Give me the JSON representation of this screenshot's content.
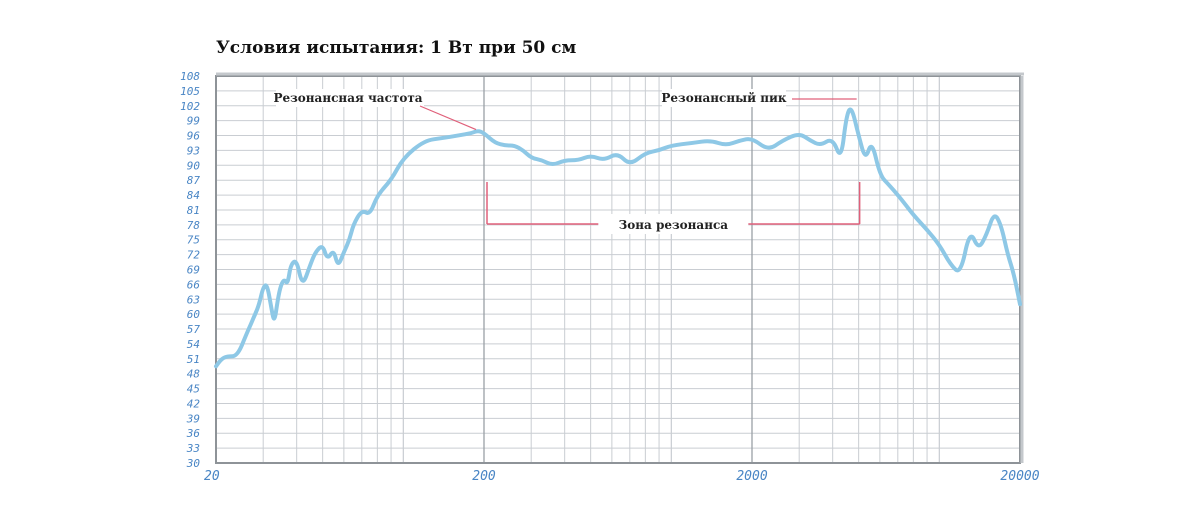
{
  "title": "Условия испытания: 1 Вт при 50 см",
  "chart_data": {
    "type": "line",
    "title": "Условия испытания: 1 Вт при 50 см",
    "x_scale": "log",
    "xlim": [
      20,
      20000
    ],
    "ylim": [
      30,
      108
    ],
    "x_ticks": [
      "20",
      "200",
      "2000",
      "20000"
    ],
    "y_ticks": [
      "108",
      "105",
      "102",
      "99",
      "96",
      "93",
      "90",
      "87",
      "84",
      "81",
      "78",
      "75",
      "72",
      "69",
      "66",
      "63",
      "60",
      "57",
      "54",
      "51",
      "48",
      "45",
      "42",
      "39",
      "36",
      "33",
      "30"
    ],
    "grid": true,
    "line_color": "#8ec8e6",
    "series": [
      {
        "x": [
          20,
          21,
          22,
          24,
          26,
          27,
          28,
          29,
          30,
          31,
          32,
          33,
          34,
          35,
          36,
          37,
          38,
          40,
          42,
          45,
          47,
          50,
          52,
          55,
          57,
          60,
          63,
          65,
          70,
          75,
          80,
          90,
          100,
          120,
          140,
          160,
          180,
          190,
          200,
          220,
          240,
          260,
          280,
          300,
          330,
          360,
          400,
          450,
          500,
          560,
          630,
          700,
          800,
          900,
          1000,
          1200,
          1400,
          1600,
          1800,
          2000,
          2300,
          2600,
          3000,
          3300,
          3600,
          4000,
          4300,
          4500,
          4700,
          5000,
          5300,
          5600,
          6000,
          6500,
          7000,
          7500,
          8000,
          9000,
          10000,
          11000,
          12000,
          13000,
          14000,
          15000,
          16000,
          17000,
          18000,
          19000,
          20000
        ],
        "y": [
          49.5,
          51,
          51.5,
          51.5,
          56,
          58,
          60,
          62,
          65.5,
          66,
          62,
          58,
          63,
          66,
          67,
          66,
          70,
          71,
          65.5,
          70,
          72.5,
          74,
          71,
          73,
          69.5,
          72.5,
          75,
          78,
          81,
          80,
          84,
          87,
          91.5,
          95,
          95.5,
          96,
          96.5,
          97,
          96.5,
          94.5,
          94,
          94,
          93,
          91.5,
          91,
          90,
          91,
          91,
          92,
          91,
          92.5,
          90,
          92.5,
          93,
          94,
          94.5,
          95,
          94,
          95,
          95.5,
          93,
          95,
          96.5,
          95,
          94,
          95.5,
          91,
          100,
          102,
          96,
          91,
          95,
          88,
          86,
          84,
          82,
          80,
          77,
          74,
          70,
          68,
          77,
          73,
          76,
          80.5,
          78,
          72,
          68,
          62
        ]
      }
    ],
    "annotations": [
      {
        "text": "Резонансная частота",
        "x": 200,
        "y": 96
      },
      {
        "text": "Резонансный пик",
        "x": 5000,
        "y": 102
      },
      {
        "text": "Зона резонанса",
        "x_range": [
          200,
          5000
        ]
      }
    ]
  }
}
